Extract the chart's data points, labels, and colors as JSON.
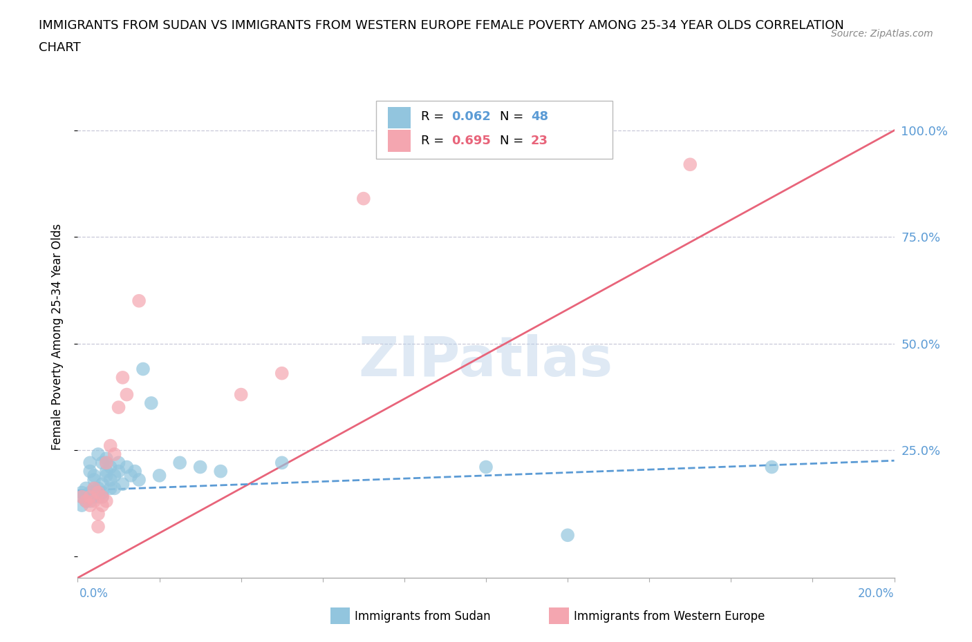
{
  "title_line1": "IMMIGRANTS FROM SUDAN VS IMMIGRANTS FROM WESTERN EUROPE FEMALE POVERTY AMONG 25-34 YEAR OLDS CORRELATION",
  "title_line2": "CHART",
  "source": "Source: ZipAtlas.com",
  "ylabel": "Female Poverty Among 25-34 Year Olds",
  "yticks": [
    0.0,
    0.25,
    0.5,
    0.75,
    1.0
  ],
  "ytick_labels": [
    "",
    "25.0%",
    "50.0%",
    "75.0%",
    "100.0%"
  ],
  "xlim": [
    0.0,
    0.2
  ],
  "ylim": [
    -0.05,
    1.08
  ],
  "sudan_color": "#92C5DE",
  "western_europe_color": "#F4A6B0",
  "sudan_line_color": "#5B9BD5",
  "western_europe_line_color": "#E8647A",
  "watermark": "ZIPatlas",
  "legend_sudan_R": "0.062",
  "legend_sudan_N": "48",
  "legend_we_R": "0.695",
  "legend_we_N": "23",
  "sudan_points": [
    [
      0.001,
      0.14
    ],
    [
      0.001,
      0.15
    ],
    [
      0.001,
      0.12
    ],
    [
      0.002,
      0.16
    ],
    [
      0.002,
      0.13
    ],
    [
      0.002,
      0.14
    ],
    [
      0.003,
      0.15
    ],
    [
      0.003,
      0.13
    ],
    [
      0.003,
      0.2
    ],
    [
      0.003,
      0.22
    ],
    [
      0.004,
      0.16
    ],
    [
      0.004,
      0.14
    ],
    [
      0.004,
      0.19
    ],
    [
      0.004,
      0.18
    ],
    [
      0.005,
      0.15
    ],
    [
      0.005,
      0.14
    ],
    [
      0.005,
      0.16
    ],
    [
      0.005,
      0.24
    ],
    [
      0.006,
      0.17
    ],
    [
      0.006,
      0.15
    ],
    [
      0.006,
      0.22
    ],
    [
      0.006,
      0.14
    ],
    [
      0.007,
      0.2
    ],
    [
      0.007,
      0.19
    ],
    [
      0.007,
      0.23
    ],
    [
      0.007,
      0.22
    ],
    [
      0.008,
      0.18
    ],
    [
      0.008,
      0.16
    ],
    [
      0.008,
      0.21
    ],
    [
      0.009,
      0.19
    ],
    [
      0.009,
      0.16
    ],
    [
      0.01,
      0.2
    ],
    [
      0.01,
      0.22
    ],
    [
      0.011,
      0.17
    ],
    [
      0.012,
      0.21
    ],
    [
      0.013,
      0.19
    ],
    [
      0.014,
      0.2
    ],
    [
      0.015,
      0.18
    ],
    [
      0.016,
      0.44
    ],
    [
      0.018,
      0.36
    ],
    [
      0.02,
      0.19
    ],
    [
      0.025,
      0.22
    ],
    [
      0.03,
      0.21
    ],
    [
      0.035,
      0.2
    ],
    [
      0.05,
      0.22
    ],
    [
      0.1,
      0.21
    ],
    [
      0.12,
      0.05
    ],
    [
      0.17,
      0.21
    ]
  ],
  "we_points": [
    [
      0.001,
      0.14
    ],
    [
      0.002,
      0.13
    ],
    [
      0.003,
      0.12
    ],
    [
      0.003,
      0.14
    ],
    [
      0.004,
      0.16
    ],
    [
      0.004,
      0.13
    ],
    [
      0.005,
      0.15
    ],
    [
      0.005,
      0.1
    ],
    [
      0.005,
      0.07
    ],
    [
      0.006,
      0.14
    ],
    [
      0.006,
      0.12
    ],
    [
      0.007,
      0.13
    ],
    [
      0.007,
      0.22
    ],
    [
      0.008,
      0.26
    ],
    [
      0.009,
      0.24
    ],
    [
      0.01,
      0.35
    ],
    [
      0.011,
      0.42
    ],
    [
      0.012,
      0.38
    ],
    [
      0.015,
      0.6
    ],
    [
      0.04,
      0.38
    ],
    [
      0.05,
      0.43
    ],
    [
      0.07,
      0.84
    ],
    [
      0.15,
      0.92
    ]
  ],
  "we_trendline": [
    0.0,
    -0.05,
    0.2,
    1.0
  ],
  "sudan_trendline_slope": 0.35,
  "sudan_trendline_intercept": 0.155
}
